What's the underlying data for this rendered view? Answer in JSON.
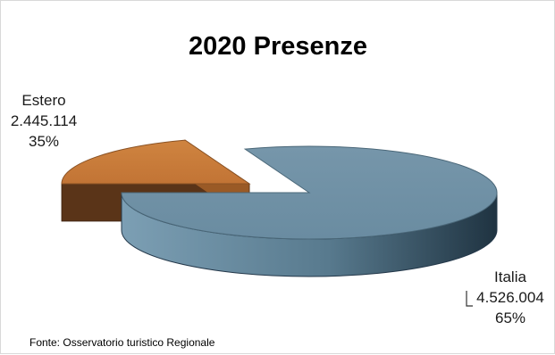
{
  "chart_data": {
    "type": "pie",
    "title": "2020 Presenze",
    "three_d": true,
    "exploded": true,
    "slices": [
      {
        "name": "Estero",
        "value": 2445114,
        "value_label": "2.445.114",
        "percent": 35,
        "percent_label": "35%",
        "color": "#c87a3a"
      },
      {
        "name": "Italia",
        "value": 4526004,
        "value_label": "4.526.004",
        "percent": 65,
        "percent_label": "65%",
        "color": "#6b90a7"
      }
    ],
    "source": "Fonte: Osservatorio turistico Regionale"
  }
}
